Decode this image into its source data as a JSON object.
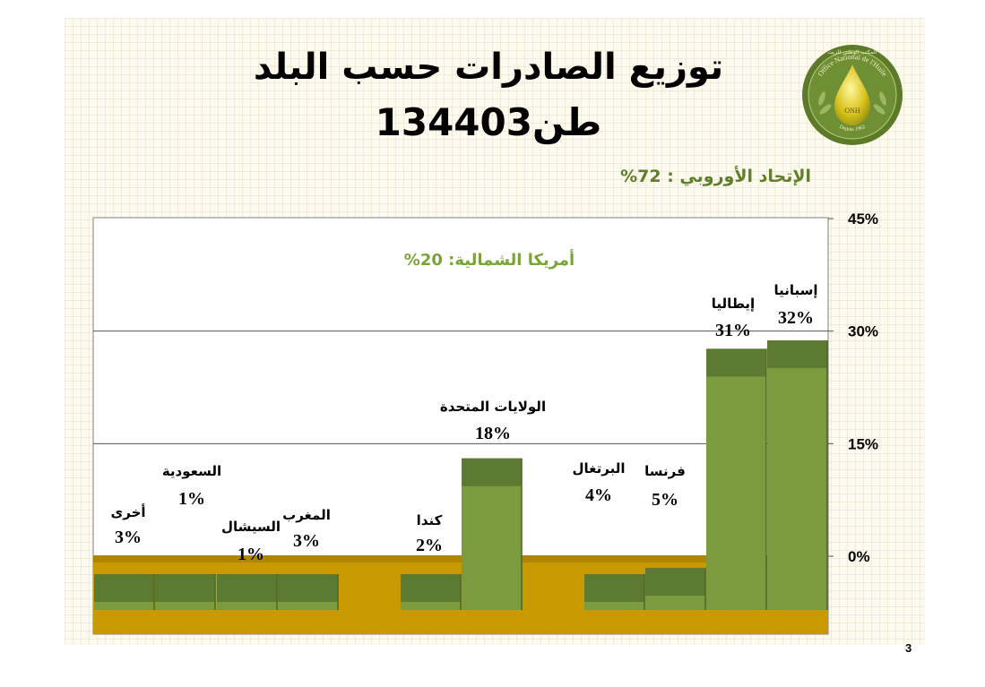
{
  "slide": {
    "title_line1": "توزيع الصادرات حسب البلد",
    "title_line2": "طن134403",
    "group_label_eu": "الإتحاد الأوروبي : 72%",
    "group_label_north_america": "أمريكا الشمالية: 20%",
    "page_number": "3",
    "logo": {
      "icon": "oil-drop-icon",
      "text_top": "المكتب الوطني للزيت",
      "text_latin": "Office National de l'Huile",
      "badge": "ONH",
      "text_bottom": "Depuis 1962"
    }
  },
  "colors": {
    "bar_top": "#5d7a32",
    "bar_front": "#7c9a3e",
    "floor": "#c99a00",
    "na_label": "#7aa33a",
    "eu_label": "#5f7f2a"
  },
  "chart_data": {
    "type": "bar",
    "title": "",
    "xlabel": "",
    "ylabel": "",
    "ylim": [
      0,
      45
    ],
    "y_ticks": [
      "45%",
      "30%",
      "15%",
      "0%"
    ],
    "grid": true,
    "categories": [
      {
        "label": "أخرى",
        "value": 3,
        "value_label": "3%"
      },
      {
        "label": "السعودية",
        "value": 1,
        "value_label": "1%"
      },
      {
        "label": "السيشال",
        "value": 1,
        "value_label": "1%"
      },
      {
        "label": "المغرب",
        "value": 3,
        "value_label": "3%"
      },
      {
        "label": "كندا",
        "value": 2,
        "value_label": "2%"
      },
      {
        "label": "الولايات المتحدة",
        "value": 18,
        "value_label": "18%"
      },
      {
        "label": "البرتغال",
        "value": 4,
        "value_label": "4%"
      },
      {
        "label": "فرنسا",
        "value": 5,
        "value_label": "5%"
      },
      {
        "label": "إيطاليا",
        "value": 31,
        "value_label": "31%"
      },
      {
        "label": "إسبانيا",
        "value": 32,
        "value_label": "32%"
      }
    ]
  }
}
